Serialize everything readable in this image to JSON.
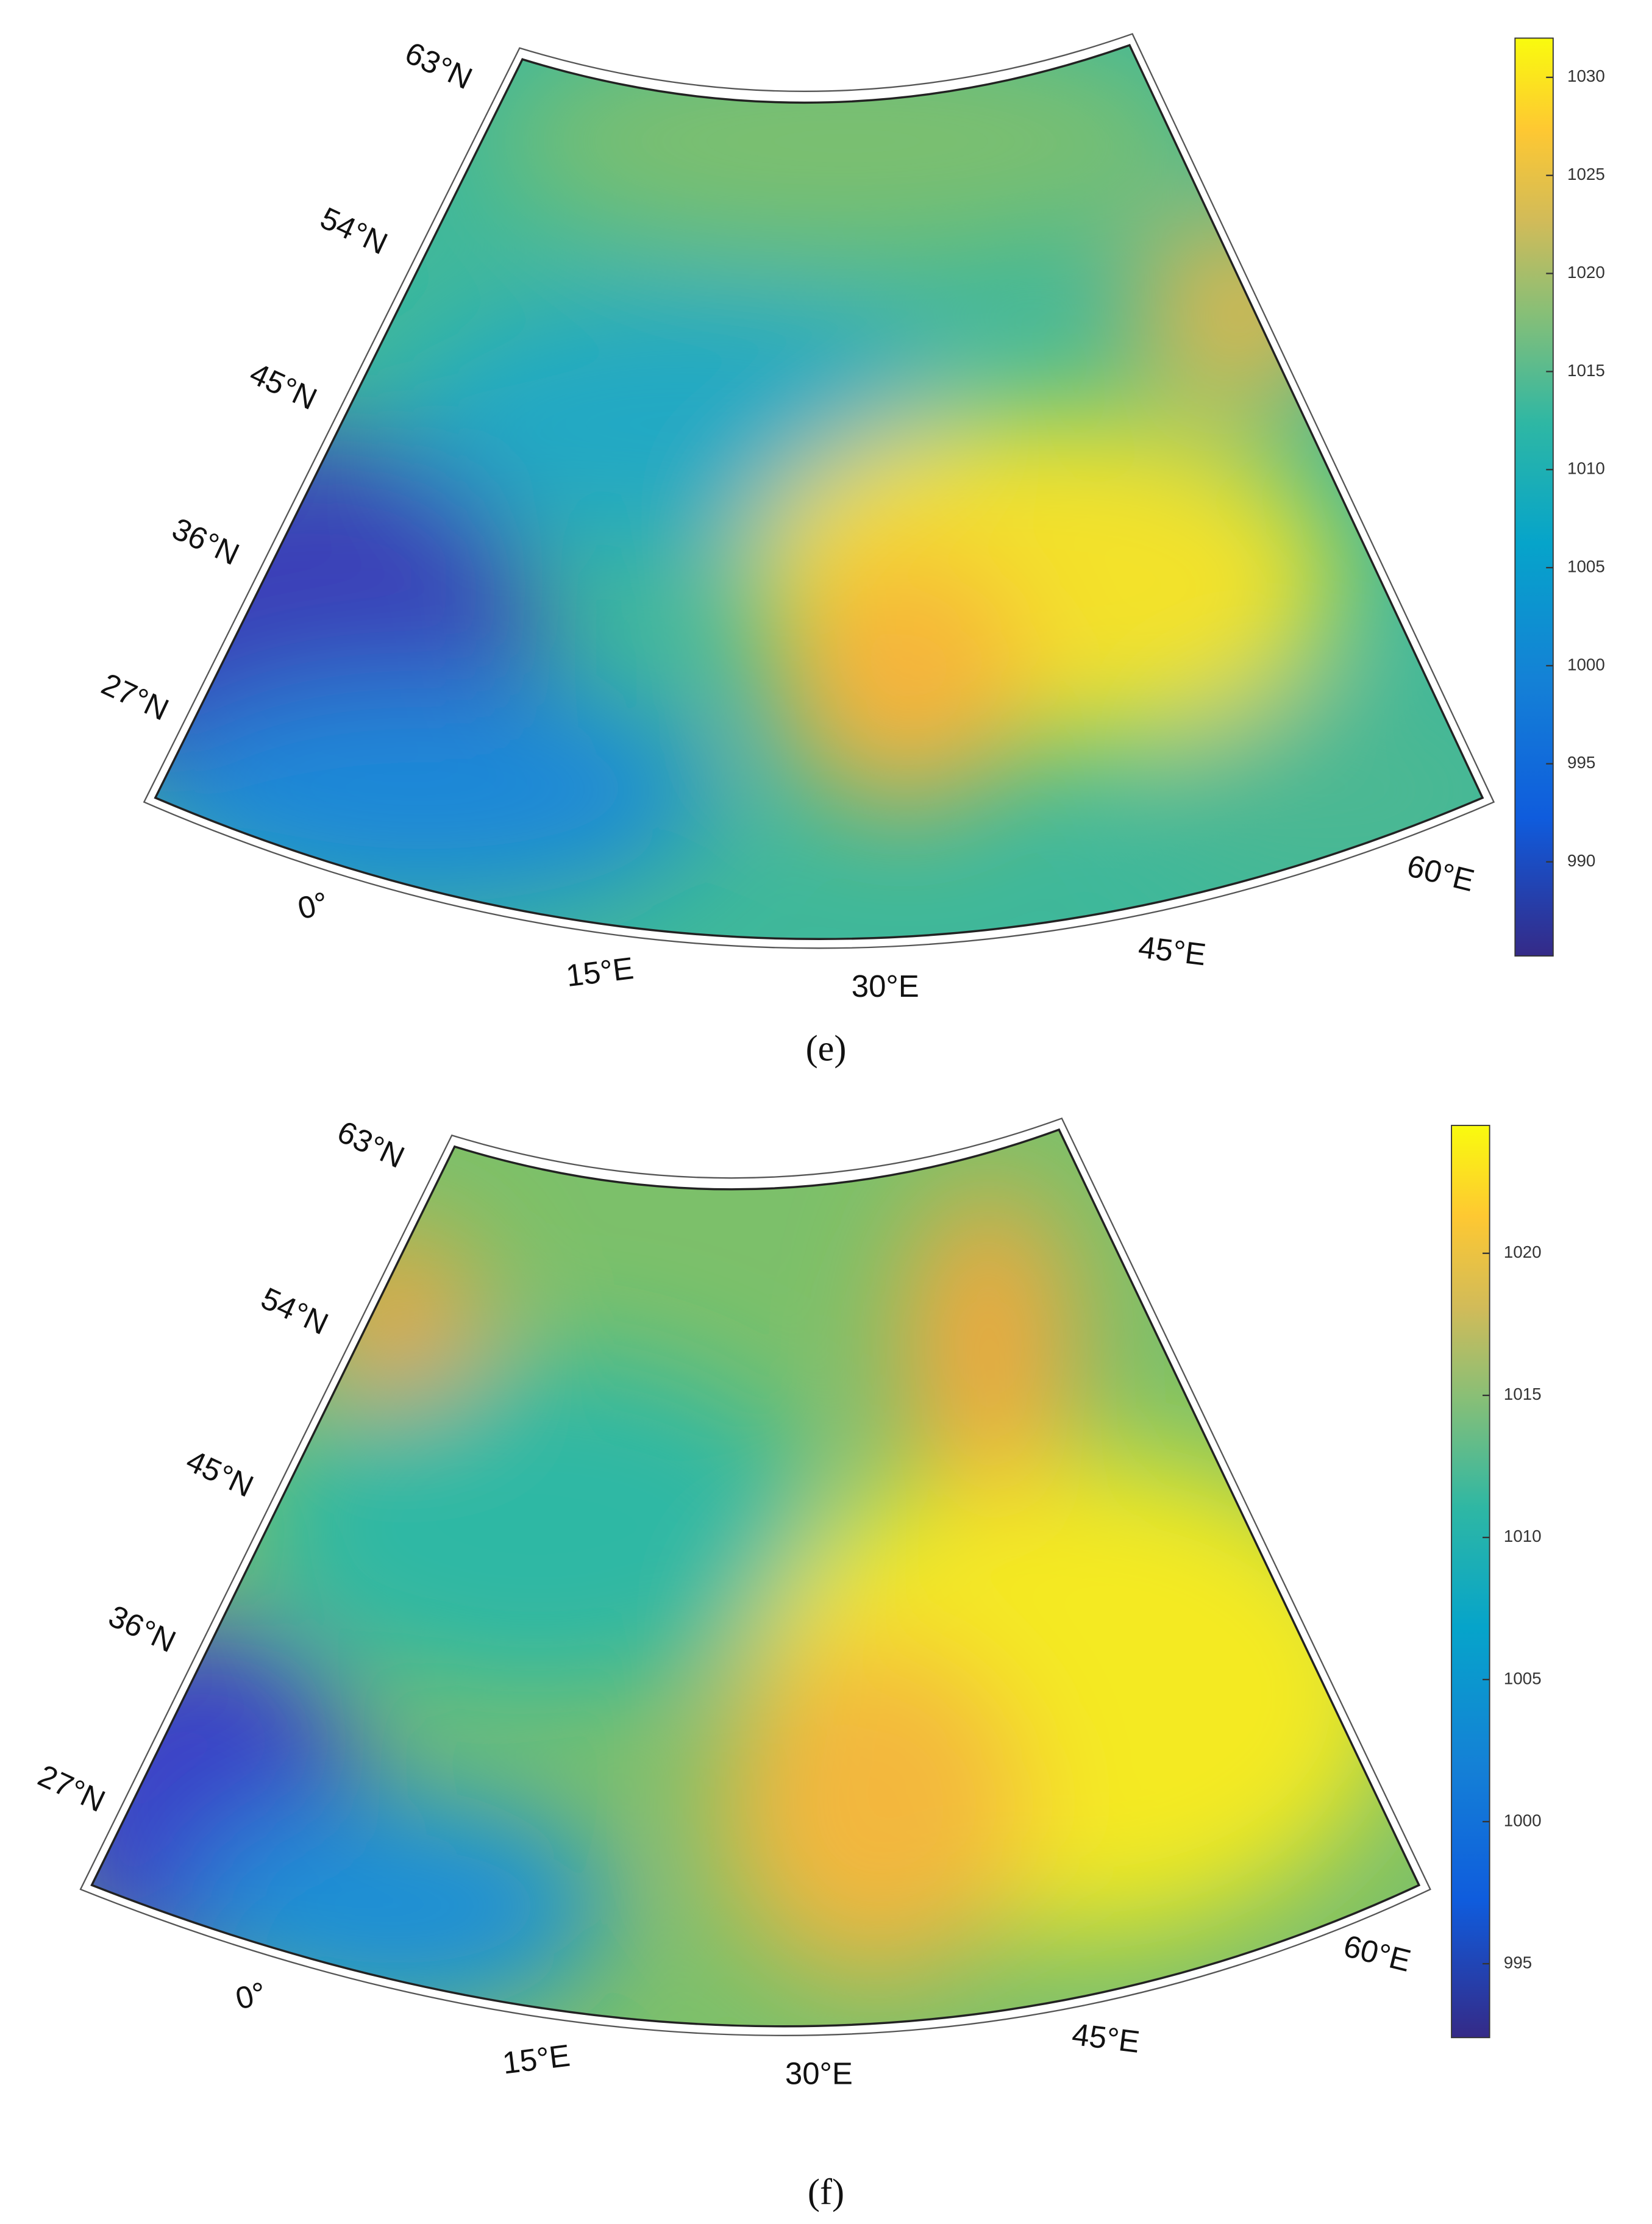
{
  "panels": [
    {
      "label": "(e)",
      "lat_labels": [
        "63°N",
        "54°N",
        "45°N",
        "36°N",
        "27°N"
      ],
      "lon_labels": [
        "0°",
        "15°E",
        "30°E",
        "45°E",
        "60°E"
      ],
      "colorbar": {
        "lim": [
          985.2,
          1032
        ],
        "ticks": [
          990,
          995,
          1000,
          1005,
          1010,
          1015,
          1020,
          1025,
          1030
        ]
      }
    },
    {
      "label": "(f)",
      "lat_labels": [
        "63°N",
        "54°N",
        "45°N",
        "36°N",
        "27°N"
      ],
      "lon_labels": [
        "0°",
        "15°E",
        "30°E",
        "45°E",
        "60°E"
      ],
      "colorbar": {
        "lim": [
          992.4,
          1024.5
        ],
        "ticks": [
          995,
          1000,
          1005,
          1010,
          1015,
          1020
        ]
      }
    }
  ]
}
